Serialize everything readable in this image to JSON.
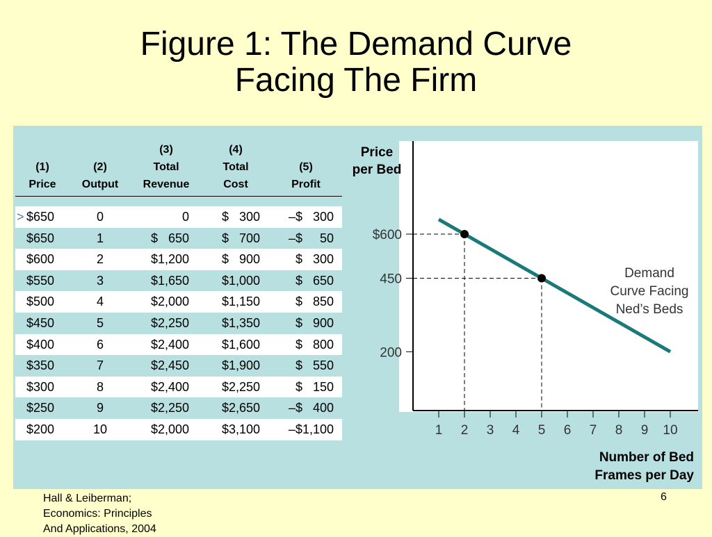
{
  "slide": {
    "title_line1": "Figure 1:  The Demand Curve",
    "title_line2": "Facing The Firm",
    "footer_line1": "Hall & Leiberman;",
    "footer_line2": "Economics:  Principles",
    "footer_line3": "And Applications, 2004",
    "page_number": "6"
  },
  "table": {
    "headers": [
      {
        "n": "(1)",
        "l1": "Price",
        "l2": ""
      },
      {
        "n": "(2)",
        "l1": "Output",
        "l2": ""
      },
      {
        "n": "(3)",
        "l1": "Total",
        "l2": "Revenue"
      },
      {
        "n": "(4)",
        "l1": "Total",
        "l2": "Cost"
      },
      {
        "n": "(5)",
        "l1": "Profit",
        "l2": ""
      }
    ],
    "rows": [
      [
        "$650",
        "0",
        "0",
        "$   300",
        "–$   300"
      ],
      [
        "$650",
        "1",
        "$   650",
        "$   700",
        "–$     50"
      ],
      [
        "$600",
        "2",
        "$1,200",
        "$   900",
        "$   300"
      ],
      [
        "$550",
        "3",
        "$1,650",
        "$1,000",
        "$   650"
      ],
      [
        "$500",
        "4",
        "$2,000",
        "$1,150",
        "$   850"
      ],
      [
        "$450",
        "5",
        "$2,250",
        "$1,350",
        "$   900"
      ],
      [
        "$400",
        "6",
        "$2,400",
        "$1,600",
        "$   800"
      ],
      [
        "$350",
        "7",
        "$2,450",
        "$1,900",
        "$   550"
      ],
      [
        "$300",
        "8",
        "$2,400",
        "$2,250",
        "$   150"
      ],
      [
        "$250",
        "9",
        "$2,250",
        "$2,650",
        "–$   400"
      ],
      [
        "$200",
        "10",
        "$2,000",
        "$3,100",
        "–$1,100"
      ]
    ],
    "first_row_marker": ">"
  },
  "chart_data": {
    "type": "line",
    "ylabel_line1": "Price",
    "ylabel_line2": "per Bed",
    "xlabel_line1": "Number of Bed",
    "xlabel_line2": "Frames per Day",
    "x_ticks": [
      "1",
      "2",
      "3",
      "4",
      "5",
      "6",
      "7",
      "8",
      "9",
      "10"
    ],
    "y_ticks": [
      {
        "label": "$600",
        "value": 600
      },
      {
        "label": "450",
        "value": 450
      },
      {
        "label": "200",
        "value": 200
      }
    ],
    "xlim": [
      0,
      10.8
    ],
    "ylim": [
      0,
      600
    ],
    "demand_line": {
      "x": [
        1,
        10
      ],
      "y": [
        650,
        200
      ]
    },
    "highlight_points": [
      {
        "x": 2,
        "y": 600
      },
      {
        "x": 5,
        "y": 450
      }
    ],
    "annotation_line1": "Demand",
    "annotation_line2": "Curve Facing",
    "annotation_line3": "Ned’s Beds",
    "colors": {
      "line": "#1a7a7a",
      "point": "#000000"
    }
  }
}
